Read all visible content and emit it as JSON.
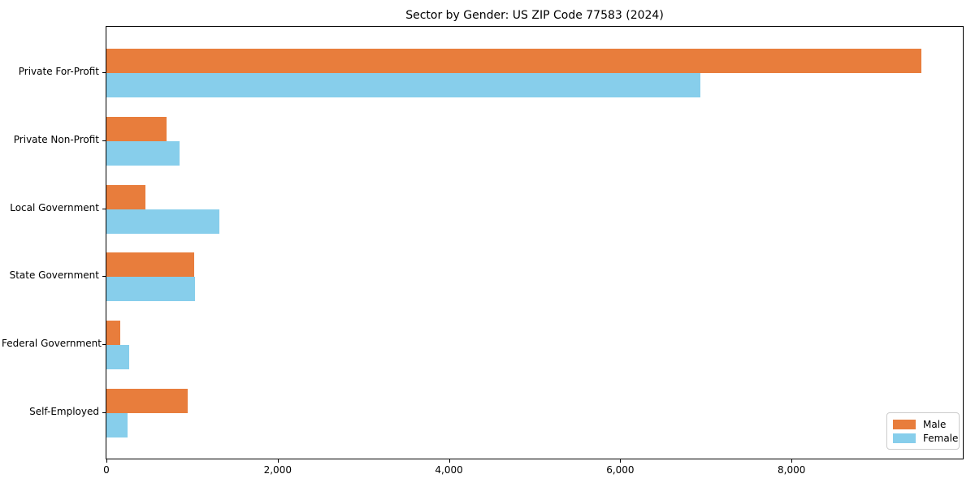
{
  "chart_data": {
    "type": "bar",
    "orientation": "horizontal",
    "title": "Sector by Gender: US ZIP Code 77583 (2024)",
    "categories": [
      "Private For-Profit",
      "Private Non-Profit",
      "Local Government",
      "State Government",
      "Federal Government",
      "Self-Employed"
    ],
    "series": [
      {
        "name": "Male",
        "color": "#E87D3C",
        "values": [
          9520,
          700,
          455,
          1020,
          160,
          950
        ]
      },
      {
        "name": "Female",
        "color": "#87CEEB",
        "values": [
          6940,
          855,
          1320,
          1030,
          265,
          250
        ]
      }
    ],
    "xlabel": "",
    "ylabel": "",
    "xlim": [
      0,
      10000
    ],
    "x_ticks": [
      0,
      2000,
      4000,
      6000,
      8000
    ],
    "x_tick_labels": [
      "0",
      "2,000",
      "4,000",
      "6,000",
      "8,000"
    ],
    "legend_position": "lower right",
    "grid": false,
    "spine_color": "#000000",
    "background_color": "#ffffff"
  }
}
